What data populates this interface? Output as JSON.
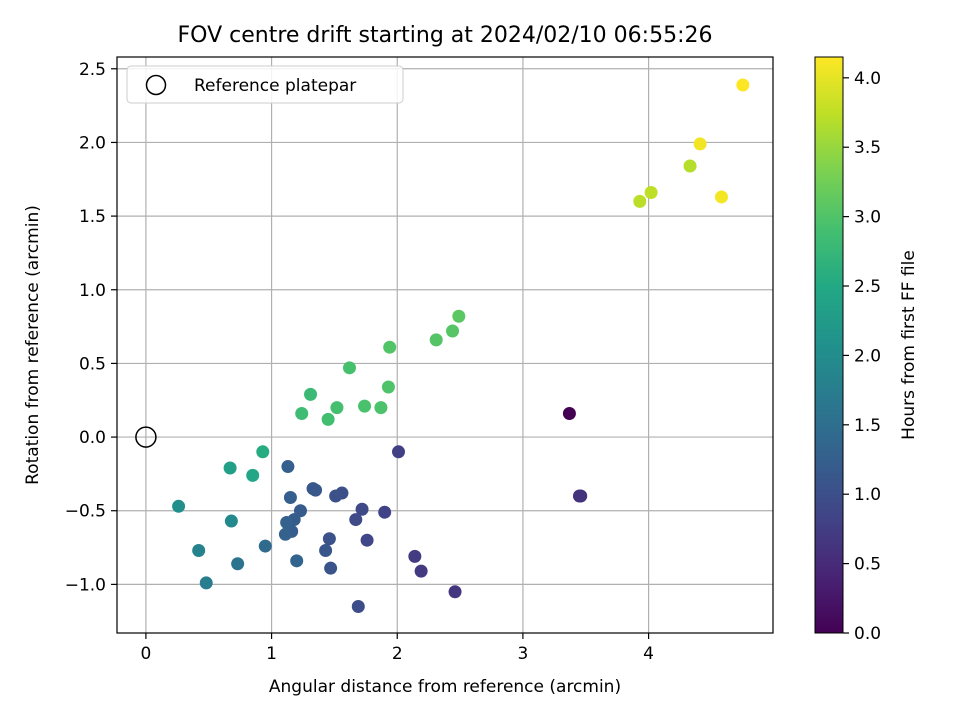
{
  "chart_data": {
    "type": "scatter",
    "title": "FOV centre drift starting at 2024/02/10 06:55:26",
    "xlabel": "Angular distance from reference (arcmin)",
    "ylabel": "Rotation from reference (arcmin)",
    "xlim": [
      -0.23,
      4.99
    ],
    "ylim": [
      -1.33,
      2.58
    ],
    "xticks": [
      0,
      1,
      2,
      3,
      4
    ],
    "yticks": [
      -1.0,
      -0.5,
      0.0,
      0.5,
      1.0,
      1.5,
      2.0,
      2.5
    ],
    "xtick_labels": [
      "0",
      "1",
      "2",
      "3",
      "4"
    ],
    "ytick_labels": [
      "−1.0",
      "−0.5",
      "0.0",
      "0.5",
      "1.0",
      "1.5",
      "2.0",
      "2.5"
    ],
    "grid": true,
    "legend": {
      "position": "top-left",
      "entries": [
        "Reference platepar"
      ]
    },
    "reference_point": {
      "x": 0.0,
      "y": 0.0
    },
    "colorbar": {
      "label": "Hours from first FF file",
      "colormap": "viridis",
      "range": [
        0.0,
        4.15
      ],
      "ticks": [
        0.0,
        0.5,
        1.0,
        1.5,
        2.0,
        2.5,
        3.0,
        3.5,
        4.0
      ],
      "tick_labels": [
        "0.0",
        "0.5",
        "1.0",
        "1.5",
        "2.0",
        "2.5",
        "3.0",
        "3.5",
        "4.0"
      ]
    },
    "points": [
      {
        "x": 3.37,
        "y": 0.16,
        "c": 0.0
      },
      {
        "x": 3.45,
        "y": -0.4,
        "c": 0.55
      },
      {
        "x": 3.46,
        "y": -0.4,
        "c": 0.6
      },
      {
        "x": 2.46,
        "y": -1.05,
        "c": 0.65
      },
      {
        "x": 2.19,
        "y": -0.91,
        "c": 0.7
      },
      {
        "x": 2.14,
        "y": -0.81,
        "c": 0.72
      },
      {
        "x": 2.01,
        "y": -0.1,
        "c": 0.78
      },
      {
        "x": 1.9,
        "y": -0.51,
        "c": 0.82
      },
      {
        "x": 1.76,
        "y": -0.7,
        "c": 0.86
      },
      {
        "x": 1.72,
        "y": -0.49,
        "c": 0.9
      },
      {
        "x": 1.67,
        "y": -0.56,
        "c": 0.93
      },
      {
        "x": 1.69,
        "y": -1.15,
        "c": 0.97
      },
      {
        "x": 1.56,
        "y": -0.38,
        "c": 1.0
      },
      {
        "x": 1.51,
        "y": -0.4,
        "c": 1.02
      },
      {
        "x": 1.46,
        "y": -0.69,
        "c": 1.05
      },
      {
        "x": 1.47,
        "y": -0.89,
        "c": 1.08
      },
      {
        "x": 1.43,
        "y": -0.77,
        "c": 1.1
      },
      {
        "x": 1.35,
        "y": -0.36,
        "c": 1.12
      },
      {
        "x": 1.33,
        "y": -0.35,
        "c": 1.14
      },
      {
        "x": 1.23,
        "y": -0.5,
        "c": 1.18
      },
      {
        "x": 1.18,
        "y": -0.56,
        "c": 1.2
      },
      {
        "x": 1.16,
        "y": -0.64,
        "c": 1.22
      },
      {
        "x": 1.15,
        "y": -0.41,
        "c": 1.24
      },
      {
        "x": 1.13,
        "y": -0.2,
        "c": 1.26
      },
      {
        "x": 1.12,
        "y": -0.58,
        "c": 1.28
      },
      {
        "x": 1.11,
        "y": -0.66,
        "c": 1.3
      },
      {
        "x": 1.2,
        "y": -0.84,
        "c": 1.32
      },
      {
        "x": 0.95,
        "y": -0.74,
        "c": 1.45
      },
      {
        "x": 0.73,
        "y": -0.86,
        "c": 1.6
      },
      {
        "x": 0.48,
        "y": -0.99,
        "c": 1.75
      },
      {
        "x": 0.42,
        "y": -0.77,
        "c": 1.85
      },
      {
        "x": 0.68,
        "y": -0.57,
        "c": 1.95
      },
      {
        "x": 0.26,
        "y": -0.47,
        "c": 2.05
      },
      {
        "x": 0.67,
        "y": -0.21,
        "c": 2.35
      },
      {
        "x": 0.85,
        "y": -0.26,
        "c": 2.45
      },
      {
        "x": 0.93,
        "y": -0.1,
        "c": 2.55
      },
      {
        "x": 1.31,
        "y": 0.29,
        "c": 2.8
      },
      {
        "x": 1.24,
        "y": 0.16,
        "c": 2.85
      },
      {
        "x": 1.45,
        "y": 0.12,
        "c": 2.88
      },
      {
        "x": 1.52,
        "y": 0.2,
        "c": 2.9
      },
      {
        "x": 1.62,
        "y": 0.47,
        "c": 2.93
      },
      {
        "x": 1.74,
        "y": 0.21,
        "c": 2.95
      },
      {
        "x": 1.87,
        "y": 0.2,
        "c": 2.97
      },
      {
        "x": 1.93,
        "y": 0.34,
        "c": 2.99
      },
      {
        "x": 1.94,
        "y": 0.61,
        "c": 3.01
      },
      {
        "x": 2.31,
        "y": 0.66,
        "c": 3.03
      },
      {
        "x": 2.44,
        "y": 0.72,
        "c": 3.05
      },
      {
        "x": 2.49,
        "y": 0.82,
        "c": 3.08
      },
      {
        "x": 3.93,
        "y": 1.6,
        "c": 3.72
      },
      {
        "x": 4.02,
        "y": 1.66,
        "c": 3.75
      },
      {
        "x": 4.33,
        "y": 1.84,
        "c": 3.68
      },
      {
        "x": 4.41,
        "y": 1.99,
        "c": 4.07
      },
      {
        "x": 4.58,
        "y": 1.63,
        "c": 4.08
      },
      {
        "x": 4.75,
        "y": 2.39,
        "c": 4.15
      }
    ]
  }
}
